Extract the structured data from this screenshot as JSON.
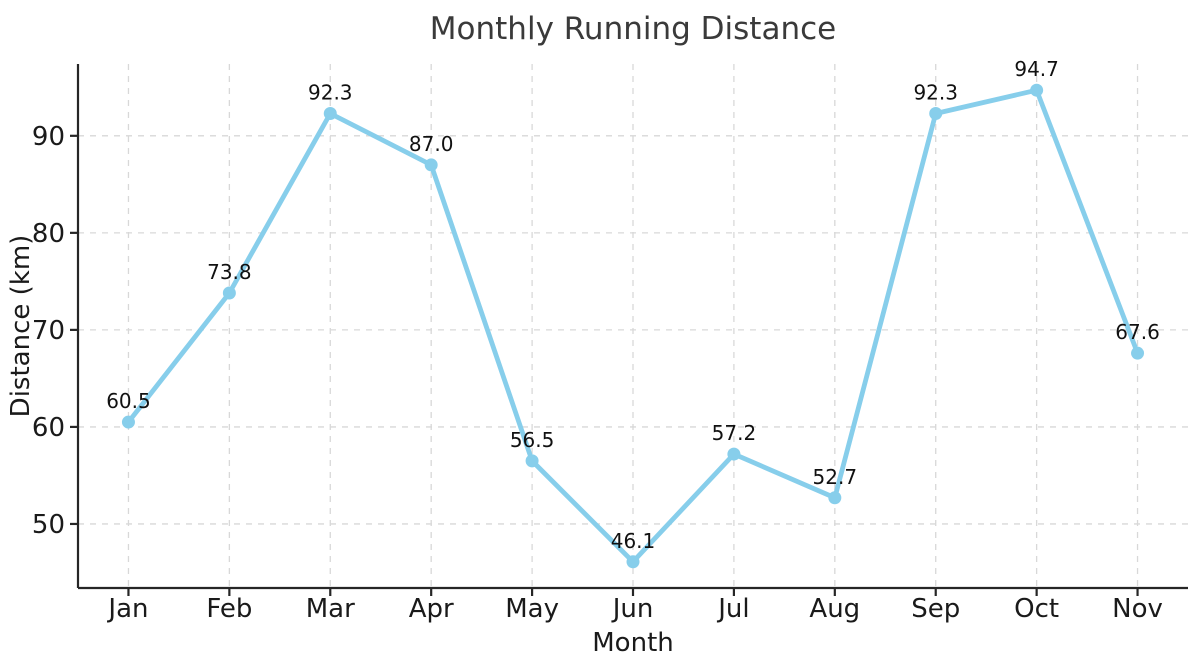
{
  "chart_data": {
    "type": "line",
    "title": "Monthly Running Distance",
    "xlabel": "Month",
    "ylabel": "Distance (km)",
    "categories": [
      "Jan",
      "Feb",
      "Mar",
      "Apr",
      "May",
      "Jun",
      "Jul",
      "Aug",
      "Sep",
      "Oct",
      "Nov"
    ],
    "values": [
      60.5,
      73.8,
      92.3,
      87.0,
      56.5,
      46.1,
      57.2,
      52.7,
      92.3,
      94.7,
      67.6
    ],
    "point_labels": [
      "60.5",
      "73.8",
      "92.3",
      "87.0",
      "56.5",
      "46.1",
      "57.2",
      "52.7",
      "92.3",
      "94.7",
      "67.6"
    ],
    "y_ticks": [
      50,
      60,
      70,
      80,
      90
    ],
    "ylim": [
      43.4,
      97.4
    ],
    "xlim": [
      -0.5,
      10.5
    ],
    "grid": "dashed-both",
    "legend_position": "none",
    "line_color": "#87CEEB",
    "marker_color": "#87CEEB",
    "grid_color": "#d8d8d8",
    "axis_color": "#262626",
    "tick_text_color": "#1a1a1a",
    "annotation_color": "#111111",
    "title_color": "#3a3a3a"
  }
}
